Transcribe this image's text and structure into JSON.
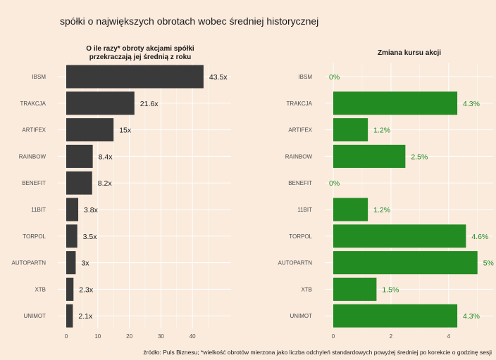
{
  "title": "spółki o największych obrotach wobec średniej historycznej",
  "caption": "źródło: Puls Biznesu; *wielkość obrotów mierzona jako liczba odchyleń standardowych powyżej średniej po korekcie o godzinę sesji",
  "colors": {
    "background": "#faebdd",
    "grid": "#ffffff",
    "left_bar": "#3a3a3a",
    "right_bar": "#228b22",
    "right_label": "#228b22",
    "left_label": "#1a1a1a"
  },
  "chart_data": [
    {
      "type": "bar",
      "orientation": "horizontal",
      "title": "O ile razy* obroty akcjami spółki\nprzekraczają jej średnią z roku",
      "categories": [
        "IBSM",
        "TRAKCJA",
        "ARTIFEX",
        "RAINBOW",
        "BENEFIT",
        "11BIT",
        "TORPOL",
        "AUTOPARTN",
        "XTB",
        "UNIMOT"
      ],
      "values": [
        43.5,
        21.6,
        15,
        8.4,
        8.2,
        3.8,
        3.5,
        3,
        2.3,
        2.1
      ],
      "labels": [
        "43.5x",
        "21.6x",
        "15x",
        "8.4x",
        "8.2x",
        "3.8x",
        "3.5x",
        "3x",
        "2.3x",
        "2.1x"
      ],
      "xlim": [
        0,
        50
      ],
      "ticks": [
        0,
        10,
        20,
        30,
        40
      ],
      "grid": true
    },
    {
      "type": "bar",
      "orientation": "horizontal",
      "title": "Zmiana kursu akcji",
      "categories": [
        "IBSM",
        "TRAKCJA",
        "ARTIFEX",
        "RAINBOW",
        "BENEFIT",
        "11BIT",
        "TORPOL",
        "AUTOPARTN",
        "XTB",
        "UNIMOT"
      ],
      "values": [
        0,
        4.3,
        1.2,
        2.5,
        0,
        1.2,
        4.6,
        5,
        1.5,
        4.3
      ],
      "labels": [
        "0%",
        "4.3%",
        "1.2%",
        "2.5%",
        "0%",
        "1.2%",
        "4.6%",
        "5%",
        "1.5%",
        "4.3%"
      ],
      "xlim": [
        0,
        5.3
      ],
      "ticks": [
        0,
        2,
        4
      ],
      "grid": true
    }
  ]
}
